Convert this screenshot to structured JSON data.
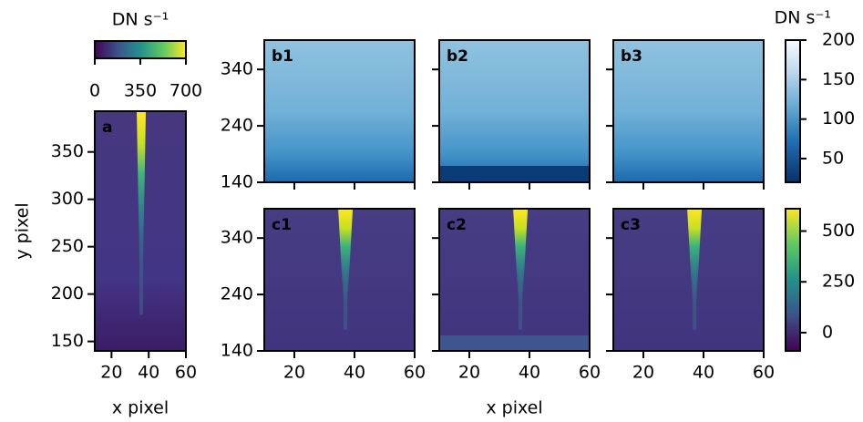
{
  "chart_data": [
    {
      "type": "image",
      "panel_label": "a",
      "xlim": [
        11,
        60
      ],
      "ylim": [
        140,
        393
      ],
      "xticks": [
        20,
        40,
        60
      ],
      "yticks": [
        150,
        200,
        250,
        300,
        350
      ],
      "xtick_labels": true,
      "ytick_labels": true,
      "xlabel": "x pixel",
      "ylabel": "y pixel"
    },
    {
      "type": "image",
      "panel_label": "b1",
      "xlim": [
        10,
        60
      ],
      "ylim": [
        140,
        392
      ],
      "xticks": [
        20,
        40,
        60
      ],
      "yticks": [
        140,
        240,
        340
      ],
      "xtick_labels": false,
      "ytick_labels": true
    },
    {
      "type": "image",
      "panel_label": "b2",
      "xlim": [
        10,
        60
      ],
      "ylim": [
        140,
        392
      ],
      "xticks": [
        20,
        40,
        60
      ],
      "yticks": [
        140,
        240,
        340
      ],
      "xtick_labels": false,
      "ytick_labels": false
    },
    {
      "type": "image",
      "panel_label": "b3",
      "xlim": [
        10,
        60
      ],
      "ylim": [
        140,
        392
      ],
      "xticks": [
        20,
        40,
        60
      ],
      "yticks": [
        140,
        240,
        340
      ],
      "xtick_labels": false,
      "ytick_labels": false
    },
    {
      "type": "image",
      "panel_label": "c1",
      "xlim": [
        10,
        60
      ],
      "ylim": [
        140,
        392
      ],
      "xticks": [
        20,
        40,
        60
      ],
      "yticks": [
        140,
        240,
        340
      ],
      "xtick_labels": true,
      "ytick_labels": true
    },
    {
      "type": "image",
      "panel_label": "c2",
      "xlim": [
        10,
        60
      ],
      "ylim": [
        140,
        392
      ],
      "xticks": [
        20,
        40,
        60
      ],
      "yticks": [
        140,
        240,
        340
      ],
      "xtick_labels": true,
      "ytick_labels": false,
      "xlabel": "x pixel"
    },
    {
      "type": "image",
      "panel_label": "c3",
      "xlim": [
        10,
        60
      ],
      "ylim": [
        140,
        392
      ],
      "xticks": [
        20,
        40,
        60
      ],
      "yticks": [
        140,
        240,
        340
      ],
      "xtick_labels": true,
      "ytick_labels": false
    },
    {
      "type": "colorbar",
      "orientation": "horizontal",
      "colormap": "viridis",
      "xlim": [
        0,
        700
      ],
      "xticks": [
        0,
        350,
        700
      ],
      "label": "DN s⁻¹"
    },
    {
      "type": "colorbar",
      "orientation": "vertical",
      "colormap": "Blues",
      "ylim": [
        20,
        200
      ],
      "yticks": [
        50,
        100,
        150,
        200
      ],
      "label": "DN s⁻¹"
    },
    {
      "type": "colorbar",
      "orientation": "vertical",
      "colormap": "viridis",
      "ylim": [
        -90,
        610
      ],
      "yticks": [
        0,
        250,
        500
      ]
    }
  ]
}
